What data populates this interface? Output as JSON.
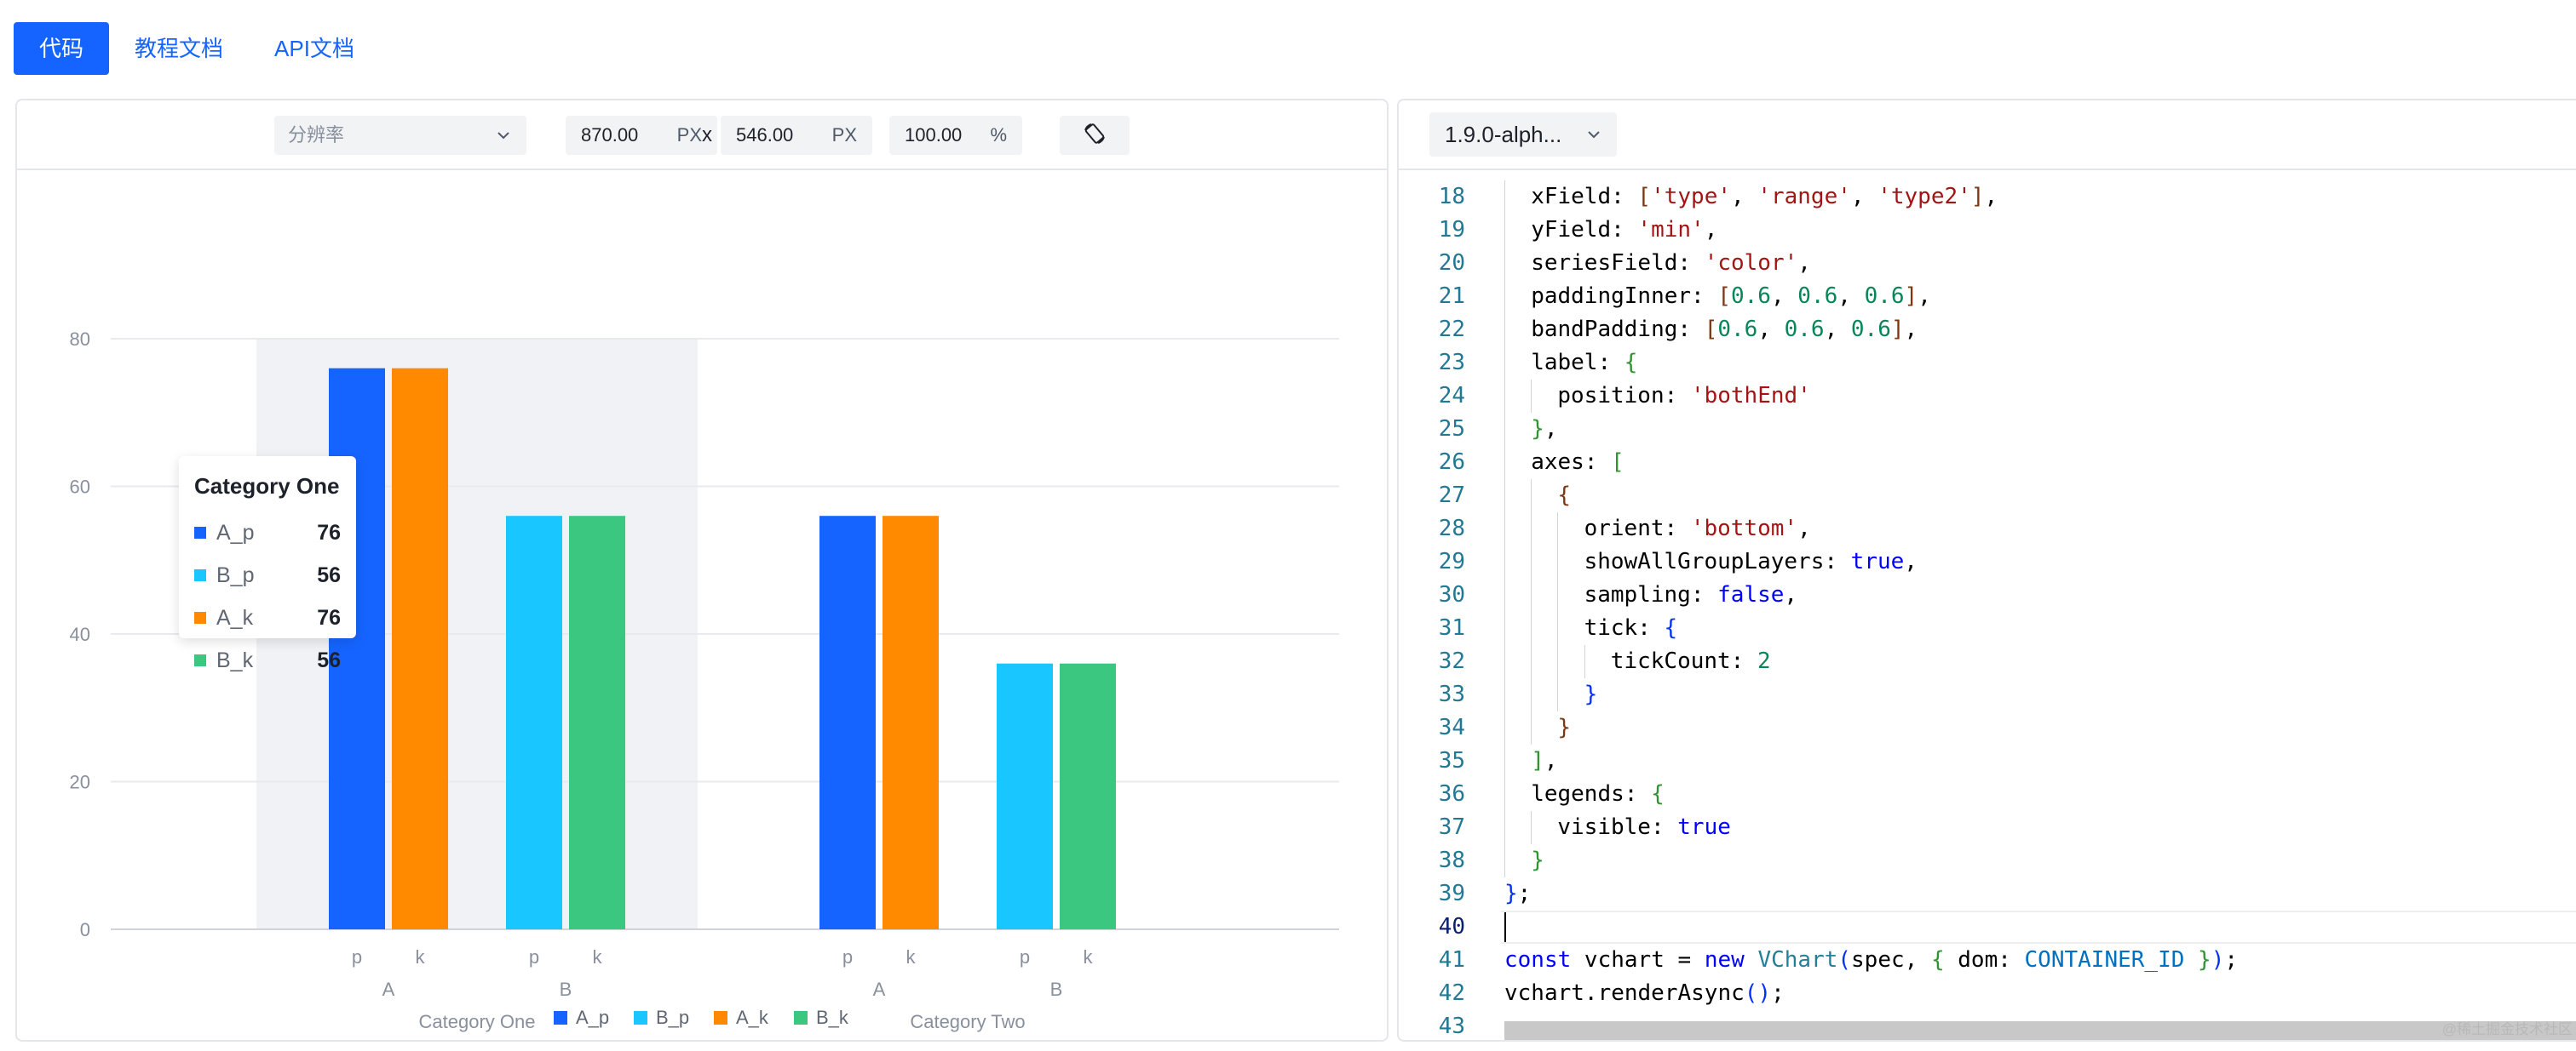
{
  "tabs": [
    {
      "label": "代码",
      "active": true
    },
    {
      "label": "教程文档",
      "active": false
    },
    {
      "label": "API文档",
      "active": false
    }
  ],
  "toolbar": {
    "resolution_placeholder": "分辨率",
    "width_value": "870.00",
    "height_value": "546.00",
    "px_unit": "PX",
    "times_sign": "x",
    "zoom_value": "100.00",
    "zoom_unit": "%"
  },
  "colors": {
    "A_p": "#1664ff",
    "B_p": "#1ac6ff",
    "A_k": "#ff8a00",
    "B_k": "#3cc780",
    "accent": "#1664ff"
  },
  "chart_data": {
    "type": "bar",
    "y_ticks": [
      "0",
      "20",
      "40",
      "60",
      "80"
    ],
    "ylim": [
      0,
      80
    ],
    "groups": [
      {
        "label": "Category One",
        "highlighted": true,
        "subgroups": [
          {
            "label": "A",
            "bars": [
              {
                "series": "A_p",
                "tick": "p",
                "value": 76
              },
              {
                "series": "A_k",
                "tick": "k",
                "value": 76
              }
            ]
          },
          {
            "label": "B",
            "bars": [
              {
                "series": "B_p",
                "tick": "p",
                "value": 56
              },
              {
                "series": "B_k",
                "tick": "k",
                "value": 56
              }
            ]
          }
        ]
      },
      {
        "label": "Category Two",
        "highlighted": false,
        "subgroups": [
          {
            "label": "A",
            "bars": [
              {
                "series": "A_p",
                "tick": "p",
                "value": 56
              },
              {
                "series": "A_k",
                "tick": "k",
                "value": 56
              }
            ]
          },
          {
            "label": "B",
            "bars": [
              {
                "series": "B_p",
                "tick": "p",
                "value": 36
              },
              {
                "series": "B_k",
                "tick": "k",
                "value": 36
              }
            ]
          }
        ]
      }
    ],
    "legend": [
      {
        "name": "A_p",
        "color": "#1664ff"
      },
      {
        "name": "B_p",
        "color": "#1ac6ff"
      },
      {
        "name": "A_k",
        "color": "#ff8a00"
      },
      {
        "name": "B_k",
        "color": "#3cc780"
      }
    ],
    "legend_position": "bottom",
    "grid": true
  },
  "tooltip": {
    "title": "Category One",
    "rows": [
      {
        "name": "A_p",
        "value": "76",
        "color": "#1664ff"
      },
      {
        "name": "B_p",
        "value": "56",
        "color": "#1ac6ff"
      },
      {
        "name": "A_k",
        "value": "76",
        "color": "#ff8a00"
      },
      {
        "name": "B_k",
        "value": "56",
        "color": "#3cc780"
      }
    ]
  },
  "editor": {
    "version": "1.9.0-alph...",
    "current_line": 40,
    "watermark": "@稀土掘金技术社区",
    "lines": [
      {
        "n": "18",
        "indent": 1,
        "tokens": [
          [
            "p",
            "xField: "
          ],
          [
            "b2",
            "["
          ],
          [
            "s",
            "'type'"
          ],
          [
            "p",
            ", "
          ],
          [
            "s",
            "'range'"
          ],
          [
            "p",
            ", "
          ],
          [
            "s",
            "'type2'"
          ],
          [
            "b2",
            "]"
          ],
          [
            "p",
            ","
          ]
        ]
      },
      {
        "n": "19",
        "indent": 1,
        "tokens": [
          [
            "p",
            "yField: "
          ],
          [
            "s",
            "'min'"
          ],
          [
            "p",
            ","
          ]
        ]
      },
      {
        "n": "20",
        "indent": 1,
        "tokens": [
          [
            "p",
            "seriesField: "
          ],
          [
            "s",
            "'color'"
          ],
          [
            "p",
            ","
          ]
        ]
      },
      {
        "n": "21",
        "indent": 1,
        "tokens": [
          [
            "p",
            "paddingInner: "
          ],
          [
            "b2",
            "["
          ],
          [
            "num",
            "0.6"
          ],
          [
            "p",
            ", "
          ],
          [
            "num",
            "0.6"
          ],
          [
            "p",
            ", "
          ],
          [
            "num",
            "0.6"
          ],
          [
            "b2",
            "]"
          ],
          [
            "p",
            ","
          ]
        ]
      },
      {
        "n": "22",
        "indent": 1,
        "tokens": [
          [
            "p",
            "bandPadding: "
          ],
          [
            "b2",
            "["
          ],
          [
            "num",
            "0.6"
          ],
          [
            "p",
            ", "
          ],
          [
            "num",
            "0.6"
          ],
          [
            "p",
            ", "
          ],
          [
            "num",
            "0.6"
          ],
          [
            "b2",
            "]"
          ],
          [
            "p",
            ","
          ]
        ]
      },
      {
        "n": "23",
        "indent": 1,
        "tokens": [
          [
            "p",
            "label: "
          ],
          [
            "b1",
            "{"
          ]
        ]
      },
      {
        "n": "24",
        "indent": 2,
        "tokens": [
          [
            "p",
            "position: "
          ],
          [
            "s",
            "'bothEnd'"
          ]
        ]
      },
      {
        "n": "25",
        "indent": 1,
        "tokens": [
          [
            "b1",
            "}"
          ],
          [
            "p",
            ","
          ]
        ]
      },
      {
        "n": "26",
        "indent": 1,
        "tokens": [
          [
            "p",
            "axes: "
          ],
          [
            "b1",
            "["
          ]
        ]
      },
      {
        "n": "27",
        "indent": 2,
        "tokens": [
          [
            "b2",
            "{"
          ]
        ]
      },
      {
        "n": "28",
        "indent": 3,
        "tokens": [
          [
            "p",
            "orient: "
          ],
          [
            "s",
            "'bottom'"
          ],
          [
            "p",
            ","
          ]
        ]
      },
      {
        "n": "29",
        "indent": 3,
        "tokens": [
          [
            "p",
            "showAllGroupLayers: "
          ],
          [
            "kw",
            "true"
          ],
          [
            "p",
            ","
          ]
        ]
      },
      {
        "n": "30",
        "indent": 3,
        "tokens": [
          [
            "p",
            "sampling: "
          ],
          [
            "kw",
            "false"
          ],
          [
            "p",
            ","
          ]
        ]
      },
      {
        "n": "31",
        "indent": 3,
        "tokens": [
          [
            "p",
            "tick: "
          ],
          [
            "b3",
            "{"
          ]
        ]
      },
      {
        "n": "32",
        "indent": 4,
        "tokens": [
          [
            "p",
            "tickCount: "
          ],
          [
            "num",
            "2"
          ]
        ]
      },
      {
        "n": "33",
        "indent": 3,
        "tokens": [
          [
            "b3",
            "}"
          ]
        ]
      },
      {
        "n": "34",
        "indent": 2,
        "tokens": [
          [
            "b2",
            "}"
          ]
        ]
      },
      {
        "n": "35",
        "indent": 1,
        "tokens": [
          [
            "b1",
            "]"
          ],
          [
            "p",
            ","
          ]
        ]
      },
      {
        "n": "36",
        "indent": 1,
        "tokens": [
          [
            "p",
            "legends: "
          ],
          [
            "b1",
            "{"
          ]
        ]
      },
      {
        "n": "37",
        "indent": 2,
        "tokens": [
          [
            "p",
            "visible: "
          ],
          [
            "kw",
            "true"
          ]
        ]
      },
      {
        "n": "38",
        "indent": 1,
        "tokens": [
          [
            "b1",
            "}"
          ]
        ]
      },
      {
        "n": "39",
        "indent": 0,
        "tokens": [
          [
            "b3",
            "}"
          ],
          [
            "p",
            ";"
          ]
        ]
      },
      {
        "n": "40",
        "indent": 0,
        "tokens": []
      },
      {
        "n": "41",
        "indent": 0,
        "tokens": [
          [
            "kw",
            "const"
          ],
          [
            "p",
            " vchart = "
          ],
          [
            "kw",
            "new"
          ],
          [
            "p",
            " "
          ],
          [
            "id",
            "VChart"
          ],
          [
            "b3",
            "("
          ],
          [
            "p",
            "spec, "
          ],
          [
            "b1",
            "{"
          ],
          [
            "p",
            " dom: "
          ],
          [
            "const",
            "CONTAINER_ID"
          ],
          [
            "p",
            " "
          ],
          [
            "b1",
            "}"
          ],
          [
            "b3",
            ")"
          ],
          [
            "p",
            ";"
          ]
        ]
      },
      {
        "n": "42",
        "indent": 0,
        "tokens": [
          [
            "p",
            "vchart.renderAsync"
          ],
          [
            "b3",
            "()"
          ],
          [
            "p",
            ";"
          ]
        ]
      },
      {
        "n": "43",
        "indent": 0,
        "tokens": []
      }
    ]
  }
}
